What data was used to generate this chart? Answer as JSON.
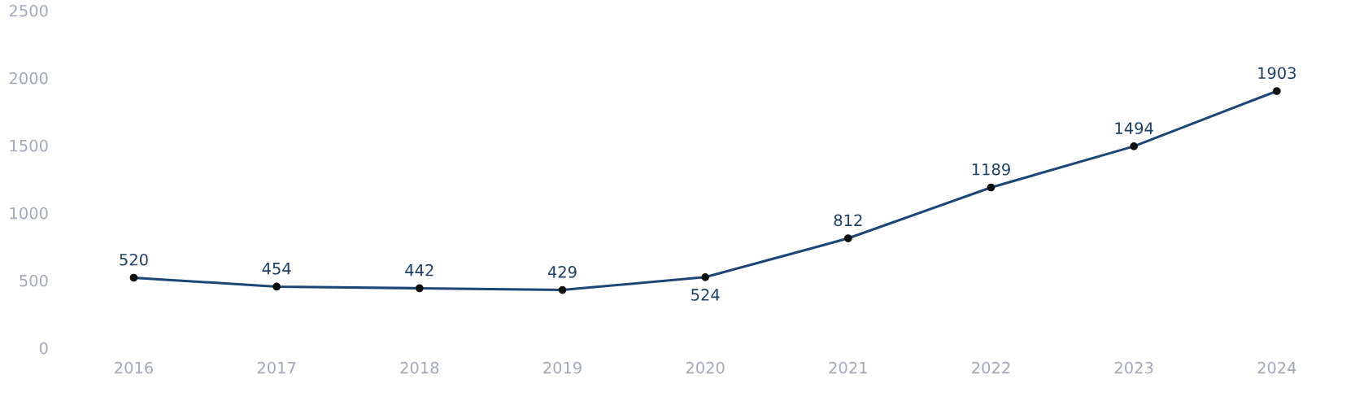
{
  "chart_data": {
    "type": "line",
    "categories": [
      "2016",
      "2017",
      "2018",
      "2019",
      "2020",
      "2021",
      "2022",
      "2023",
      "2024"
    ],
    "series": [
      {
        "color": "#1d4677",
        "values": [
          520,
          454,
          442,
          429,
          524,
          812,
          1189,
          1494,
          1903
        ]
      }
    ],
    "ylim": [
      0,
      2500
    ],
    "yticks": [
      0,
      500,
      1000,
      1500,
      2000,
      2500
    ],
    "grid": false,
    "marker": "circle",
    "line_style": "solid",
    "data_labels": true
  }
}
